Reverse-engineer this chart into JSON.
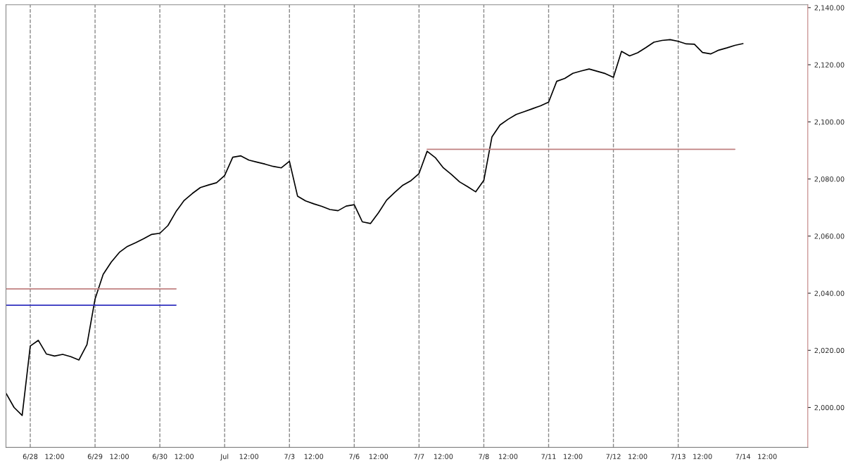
{
  "chart_data": {
    "type": "line",
    "categories": [
      null,
      null,
      null,
      "6/28",
      null,
      null,
      "12:00",
      null,
      null,
      null,
      null,
      "6/29",
      null,
      null,
      "12:00",
      null,
      null,
      null,
      null,
      "6/30",
      null,
      null,
      "12:00",
      null,
      null,
      null,
      null,
      "Jul",
      null,
      null,
      "12:00",
      null,
      null,
      null,
      null,
      "7/3",
      null,
      null,
      "12:00",
      null,
      null,
      null,
      null,
      "7/6",
      null,
      null,
      "12:00",
      null,
      null,
      null,
      null,
      "7/7",
      null,
      null,
      "12:00",
      null,
      null,
      null,
      null,
      "7/8",
      null,
      null,
      "12:00",
      null,
      null,
      null,
      null,
      "7/11",
      null,
      null,
      "12:00",
      null,
      null,
      null,
      null,
      "7/12",
      null,
      null,
      "12:00",
      null,
      null,
      null,
      null,
      "7/13",
      null,
      null,
      "12:00",
      null,
      null,
      null,
      null,
      "7/14",
      null,
      null,
      "12:00",
      null,
      null,
      null,
      null,
      null
    ],
    "ylim": [
      1986,
      2141
    ],
    "yticks": [
      {
        "value": 2000,
        "label": "2,000.00"
      },
      {
        "value": 2020,
        "label": "2,020.00"
      },
      {
        "value": 2040,
        "label": "2,040.00"
      },
      {
        "value": 2060,
        "label": "2,060.00"
      },
      {
        "value": 2080,
        "label": "2,080.00"
      },
      {
        "value": 2100,
        "label": "2,100.00"
      },
      {
        "value": 2120,
        "label": "2,120.00"
      },
      {
        "value": 2140,
        "label": "2,140.00"
      }
    ],
    "grid": false,
    "legend": false,
    "marker": "none",
    "line_style": "solid",
    "series": [
      {
        "color": "#000000",
        "values": [
          2005.0,
          2000.0,
          1997.2,
          2021.5,
          2023.5,
          2018.7,
          2018.0,
          2018.6,
          2017.8,
          2016.6,
          2022.0,
          2038.0,
          2046.6,
          2050.9,
          2054.3,
          2056.4,
          2057.7,
          2059.1,
          2060.6,
          2061.0,
          2063.7,
          2068.6,
          2072.5,
          2074.9,
          2077.0,
          2077.9,
          2078.7,
          2081.2,
          2087.6,
          2088.1,
          2086.6,
          2085.9,
          2085.2,
          2084.4,
          2083.9,
          2086.2,
          2074.0,
          2072.3,
          2071.3,
          2070.4,
          2069.3,
          2068.9,
          2070.5,
          2071.0,
          2065.0,
          2064.4,
          2068.2,
          2072.6,
          2075.3,
          2077.8,
          2079.4,
          2081.9,
          2089.7,
          2087.5,
          2083.9,
          2081.6,
          2079.0,
          2077.3,
          2075.5,
          2079.5,
          2094.7,
          2098.9,
          2100.9,
          2102.6,
          2103.6,
          2104.6,
          2105.6,
          2106.9,
          2114.2,
          2115.2,
          2117.0,
          2117.8,
          2118.5,
          2117.7,
          2116.9,
          2115.6,
          2124.7,
          2123.1,
          2124.2,
          2126.0,
          2127.9,
          2128.5,
          2128.8,
          2128.2,
          2127.3,
          2127.2,
          2124.3,
          2123.8,
          2125.1,
          2125.9,
          2126.8,
          2127.4,
          null,
          null,
          null,
          null,
          null,
          null,
          null,
          null
        ]
      },
      {
        "color": "#c08080",
        "values": [
          2041.5,
          2041.5,
          2041.5,
          2041.5,
          2041.5,
          2041.5,
          2041.5,
          2041.5,
          2041.5,
          2041.5,
          2041.5,
          2041.5,
          2041.5,
          2041.5,
          2041.5,
          2041.5,
          2041.5,
          2041.5,
          2041.5,
          2041.5,
          2041.5,
          2041.5,
          null,
          null,
          null,
          null,
          null,
          null,
          null,
          null,
          null,
          null,
          null,
          null,
          null,
          null,
          null,
          null,
          null,
          null,
          null,
          null,
          null,
          null,
          null,
          null,
          null,
          null,
          null,
          null,
          null,
          null,
          null,
          null,
          null,
          null,
          null,
          null,
          null,
          null,
          null,
          null,
          null,
          null,
          null,
          null,
          null,
          null,
          null,
          null,
          null,
          null,
          null,
          null,
          null,
          null,
          null,
          null,
          null,
          null,
          null,
          null,
          null,
          null,
          null,
          null,
          null,
          null,
          null,
          null,
          null,
          null,
          null,
          null,
          null,
          null,
          null,
          null,
          null,
          null
        ]
      },
      {
        "color": "#3030c0",
        "values": [
          2035.8,
          2035.8,
          2035.8,
          2035.8,
          2035.8,
          2035.8,
          2035.8,
          2035.8,
          2035.8,
          2035.8,
          2035.8,
          2035.8,
          2035.8,
          2035.8,
          2035.8,
          2035.8,
          2035.8,
          2035.8,
          2035.8,
          2035.8,
          2035.8,
          2035.8,
          null,
          null,
          null,
          null,
          null,
          null,
          null,
          null,
          null,
          null,
          null,
          null,
          null,
          null,
          null,
          null,
          null,
          null,
          null,
          null,
          null,
          null,
          null,
          null,
          null,
          null,
          null,
          null,
          null,
          null,
          null,
          null,
          null,
          null,
          null,
          null,
          null,
          null,
          null,
          null,
          null,
          null,
          null,
          null,
          null,
          null,
          null,
          null,
          null,
          null,
          null,
          null,
          null,
          null,
          null,
          null,
          null,
          null,
          null,
          null,
          null,
          null,
          null,
          null,
          null,
          null,
          null,
          null,
          null,
          null,
          null,
          null,
          null,
          null,
          null,
          null,
          null,
          null
        ]
      },
      {
        "color": "#c08080",
        "values": [
          null,
          null,
          null,
          null,
          null,
          null,
          null,
          null,
          null,
          null,
          null,
          null,
          null,
          null,
          null,
          null,
          null,
          null,
          null,
          null,
          null,
          null,
          null,
          null,
          null,
          null,
          null,
          null,
          null,
          null,
          null,
          null,
          null,
          null,
          null,
          null,
          null,
          null,
          null,
          null,
          null,
          null,
          null,
          null,
          null,
          null,
          null,
          null,
          null,
          null,
          null,
          null,
          2090.4,
          2090.4,
          2090.4,
          2090.4,
          2090.4,
          2090.4,
          2090.4,
          2090.4,
          2090.4,
          2090.4,
          2090.4,
          2090.4,
          2090.4,
          2090.4,
          2090.4,
          2090.4,
          2090.4,
          2090.4,
          2090.4,
          2090.4,
          2090.4,
          2090.4,
          2090.4,
          2090.4,
          2090.4,
          2090.4,
          2090.4,
          2090.4,
          2090.4,
          2090.4,
          2090.4,
          2090.4,
          2090.4,
          2090.4,
          2090.4,
          2090.4,
          2090.4,
          2090.4,
          2090.4,
          null,
          null,
          null,
          null,
          null,
          null,
          null,
          null,
          null
        ]
      }
    ]
  }
}
